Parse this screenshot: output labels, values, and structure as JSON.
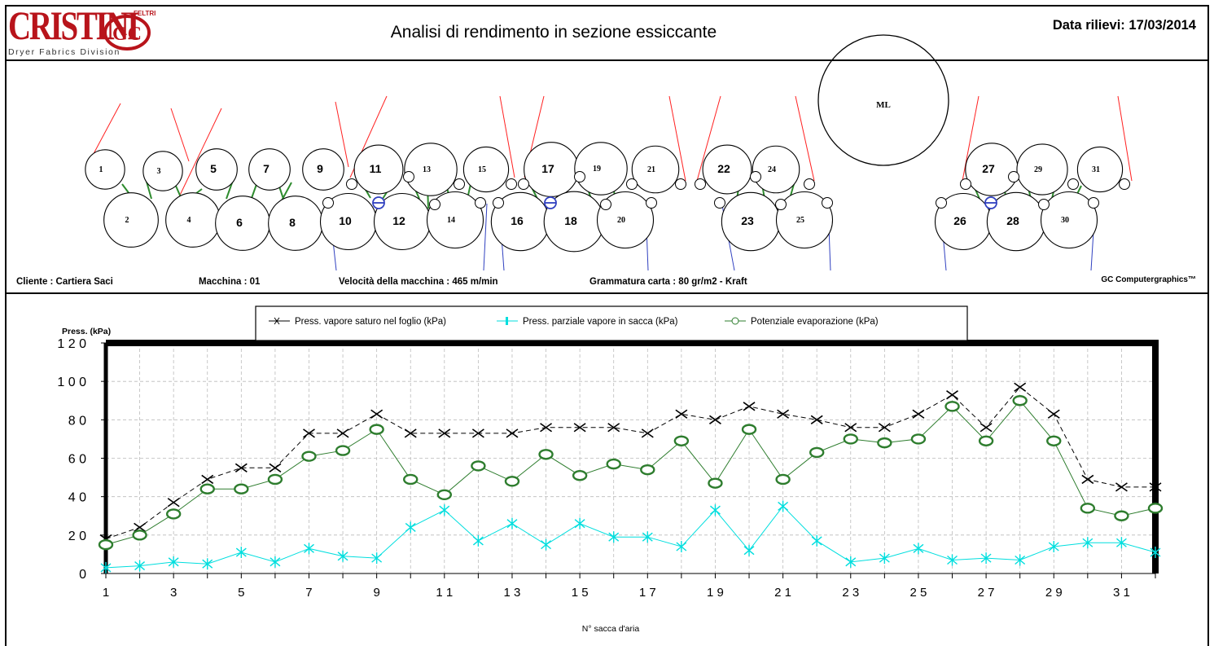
{
  "header": {
    "logo_brand": "CRISTINI",
    "logo_gc": "GC",
    "logo_feltri": "FELTRI",
    "logo_division": "Dryer Fabrics Division",
    "title": "Analisi di rendimento in sezione essiccante",
    "date_label": "Data rilievi:",
    "date_value": "17/03/2014"
  },
  "diagram": {
    "cylinders": [
      "1",
      "2",
      "3",
      "4",
      "5",
      "6",
      "7",
      "8",
      "9",
      "10",
      "11",
      "12",
      "13",
      "14",
      "15",
      "16",
      "17",
      "18",
      "19",
      "20",
      "21",
      "22",
      "23",
      "24",
      "25",
      "26",
      "27",
      "28",
      "29",
      "30",
      "31"
    ],
    "press_label": "ML"
  },
  "info": {
    "cliente": "Cliente : Cartiera Saci",
    "macchina": "Macchina : 01",
    "velocita": "Velocità della macchina : 465  m/min",
    "grammatura": "Grammatura carta : 80 gr/m2 - Kraft",
    "copyright": "GC Computergraphics™"
  },
  "colors": {
    "brand_red": "#b8141b",
    "upper_felt": "#ff2020",
    "lower_felt": "#3040c0",
    "pocket": "#2e8b2e",
    "series_saturated": "#000000",
    "series_partial": "#00dede",
    "series_potential": "#2e7d2e"
  },
  "chart_data": {
    "type": "line",
    "ylabel": "Press. (kPa)",
    "xlabel": "N° sacca d'aria",
    "ylim": [
      0,
      120
    ],
    "xlim": [
      1,
      32
    ],
    "yticks": [
      "0",
      "2 0",
      "4 0",
      "6 0",
      "8 0",
      "1 0 0",
      "1 2 0"
    ],
    "xticks": [
      "1",
      "3",
      "5",
      "7",
      "9",
      "1 1",
      "1 3",
      "1 5",
      "1 7",
      "1 9",
      "2 1",
      "2 3",
      "2 5",
      "2 7",
      "2 9",
      "3 1"
    ],
    "grid": true,
    "legend": "top",
    "x": [
      1,
      2,
      3,
      4,
      5,
      6,
      7,
      8,
      9,
      10,
      11,
      12,
      13,
      14,
      15,
      16,
      17,
      18,
      19,
      20,
      21,
      22,
      23,
      24,
      25,
      26,
      27,
      28,
      29,
      30,
      31,
      32
    ],
    "series": [
      {
        "name": "Press. vapore saturo nel foglio (kPa)",
        "marker": "x",
        "values": [
          18,
          24,
          37,
          49,
          55,
          55,
          73,
          73,
          83,
          73,
          73,
          73,
          73,
          76,
          76,
          76,
          73,
          83,
          80,
          87,
          83,
          80,
          76,
          76,
          83,
          93,
          76,
          97,
          83,
          49,
          45,
          45
        ]
      },
      {
        "name": "Press. parziale vapore in sacca (kPa)",
        "marker": "asterisk",
        "values": [
          3,
          4,
          6,
          5,
          11,
          6,
          13,
          9,
          8,
          24,
          33,
          17,
          26,
          15,
          26,
          19,
          19,
          14,
          33,
          12,
          35,
          17,
          6,
          8,
          13,
          7,
          8,
          7,
          14,
          16,
          16,
          11
        ]
      },
      {
        "name": "Potenziale evaporazione (kPa)",
        "marker": "circle",
        "values": [
          15,
          20,
          31,
          44,
          44,
          49,
          61,
          64,
          75,
          49,
          41,
          56,
          48,
          62,
          51,
          57,
          54,
          69,
          47,
          75,
          49,
          63,
          70,
          68,
          70,
          87,
          69,
          90,
          69,
          34,
          30,
          34
        ]
      }
    ]
  }
}
